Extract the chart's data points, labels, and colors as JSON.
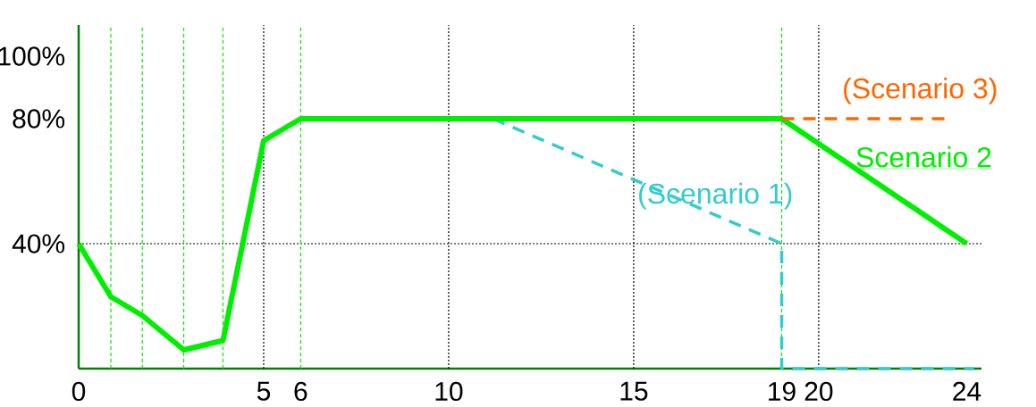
{
  "chart_data": {
    "type": "line",
    "series": [
      {
        "name": "(Scenario 1)",
        "color": "#33cccc",
        "line_style": "dashed",
        "x": [
          11.2,
          19,
          19,
          24.2
        ],
        "values": [
          80,
          40,
          0,
          0
        ]
      },
      {
        "name": "Scenario 2",
        "color": "#00ee00",
        "line_style": "solid",
        "x": [
          0,
          0.87,
          1.72,
          2.84,
          3.9,
          5,
          6,
          19,
          24
        ],
        "values": [
          40,
          23,
          17,
          6,
          9,
          73,
          80,
          80,
          40
        ]
      },
      {
        "name": "(Scenario 3)",
        "color": "#ff6600",
        "line_style": "dashed",
        "x": [
          19,
          23.4
        ],
        "values": [
          80,
          80
        ]
      }
    ],
    "xlim": [
      0,
      24.4
    ],
    "ylim": [
      0,
      110
    ],
    "xticks": [
      0,
      5,
      6,
      10,
      15,
      19,
      20,
      24
    ],
    "yticks": [
      {
        "value": 40,
        "label": "40%"
      },
      {
        "value": 80,
        "label": "80%"
      },
      {
        "value": 100,
        "label": "100%"
      }
    ],
    "ref_lines": [
      {
        "axis": "y",
        "value": 40,
        "color": "#000000",
        "line_style": "dotted"
      },
      {
        "axis": "x",
        "value": 5,
        "color": "#000000",
        "line_style": "dotted"
      },
      {
        "axis": "x",
        "value": 10,
        "color": "#000000",
        "line_style": "dotted"
      },
      {
        "axis": "x",
        "value": 15,
        "color": "#000000",
        "line_style": "dotted"
      },
      {
        "axis": "x",
        "value": 20,
        "color": "#000000",
        "line_style": "dotted"
      },
      {
        "axis": "x",
        "value": 0.87,
        "color": "#00ee00",
        "line_style": "dashed"
      },
      {
        "axis": "x",
        "value": 1.72,
        "color": "#00ee00",
        "line_style": "dashed"
      },
      {
        "axis": "x",
        "value": 2.84,
        "color": "#00ee00",
        "line_style": "dashed"
      },
      {
        "axis": "x",
        "value": 3.9,
        "color": "#00ee00",
        "line_style": "dashed"
      },
      {
        "axis": "x",
        "value": 6,
        "color": "#00ee00",
        "line_style": "dashed"
      },
      {
        "axis": "x",
        "value": 19,
        "color": "#00ee00",
        "line_style": "dashed"
      }
    ],
    "grid": false,
    "marker": "none"
  }
}
